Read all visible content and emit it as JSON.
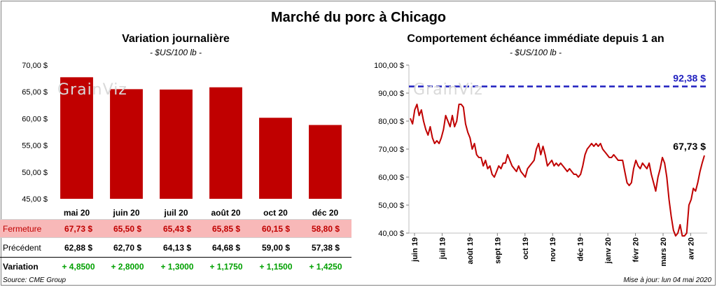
{
  "title": "Marché du porc à Chicago",
  "watermark": "GrainViz",
  "left_panel": {
    "title": "Variation  journalière",
    "subtitle": "- $US/100 lb -"
  },
  "right_panel": {
    "title": "Comportement  échéance immédiate depuis 1 an",
    "subtitle": "- $US/100 lb -"
  },
  "table": {
    "close_label": "Fermeture",
    "prev_label": "Précédent",
    "var_label": "Variation",
    "close": [
      "67,73  $",
      "65,50  $",
      "65,43  $",
      "65,85  $",
      "60,15  $",
      "58,80  $"
    ],
    "prev": [
      "62,88  $",
      "62,70  $",
      "64,13  $",
      "64,68  $",
      "59,00  $",
      "57,38  $"
    ],
    "variation": [
      "+ 4,8500",
      "+ 2,8000",
      "+ 1,3000",
      "+ 1,1750",
      "+ 1,1500",
      "+ 1,4250"
    ]
  },
  "footer": {
    "source": "Source: CME Group",
    "update": "Mise à jour: lun 04 mai 2020"
  },
  "chart_data": [
    {
      "type": "bar",
      "title": "Variation  journalière",
      "subtitle": "- $US/100 lb -",
      "categories": [
        "mai 20",
        "juin 20",
        "juil 20",
        "août 20",
        "oct 20",
        "déc 20"
      ],
      "values": [
        67.73,
        65.5,
        65.43,
        65.85,
        60.15,
        58.8
      ],
      "ylim": [
        45,
        70
      ],
      "yticks": [
        "45,00 $",
        "50,00 $",
        "55,00 $",
        "60,00 $",
        "65,00 $",
        "70,00 $"
      ],
      "color": "#c00000",
      "grid": false
    },
    {
      "type": "line",
      "title": "Comportement  échéance immédiate depuis 1 an",
      "subtitle": "- $US/100 lb -",
      "ylim": [
        40,
        100
      ],
      "yticks": [
        "40,00 $",
        "50,00 $",
        "60,00 $",
        "70,00 $",
        "80,00 $",
        "90,00 $",
        "100,00 $"
      ],
      "xticks": [
        "juin 19",
        "juil 19",
        "août 19",
        "sept 19",
        "oct 19",
        "nov 19",
        "déc 19",
        "janv 20",
        "févr 20",
        "mars 20",
        "avr 20"
      ],
      "reference_line": {
        "value": 92.38,
        "label": "92,38 $",
        "color": "#1f1fbf"
      },
      "last_label": "67,73 $",
      "line_color": "#c00000",
      "series": [
        {
          "values": [
            81,
            79,
            84,
            86,
            82,
            84,
            80,
            77,
            75,
            78,
            74,
            72,
            73,
            72,
            74,
            77,
            82,
            80,
            78,
            82,
            78,
            80,
            86,
            86,
            85,
            79,
            76,
            74,
            70,
            72,
            68,
            67,
            67,
            64,
            66,
            63,
            64,
            61,
            60,
            62,
            64,
            63,
            65,
            65,
            68,
            66,
            64,
            63,
            62,
            64,
            62,
            61,
            60,
            63,
            64,
            65,
            66,
            70,
            72,
            68,
            71,
            68,
            64,
            65,
            66,
            64,
            65,
            64,
            65,
            64,
            63,
            62,
            63,
            62,
            61,
            61,
            60,
            61,
            64,
            68,
            70,
            71,
            72,
            71,
            72,
            71,
            72,
            70,
            69,
            68,
            67,
            67,
            68,
            67,
            66,
            66,
            66,
            62,
            58,
            57,
            58,
            63,
            66,
            64,
            63,
            65,
            64,
            63,
            65,
            61,
            58,
            55,
            60,
            63,
            67,
            65,
            60,
            52,
            46,
            41,
            38,
            40,
            43,
            38,
            37,
            40,
            50,
            52,
            56,
            55,
            58,
            62,
            65,
            67.73
          ]
        }
      ]
    }
  ]
}
